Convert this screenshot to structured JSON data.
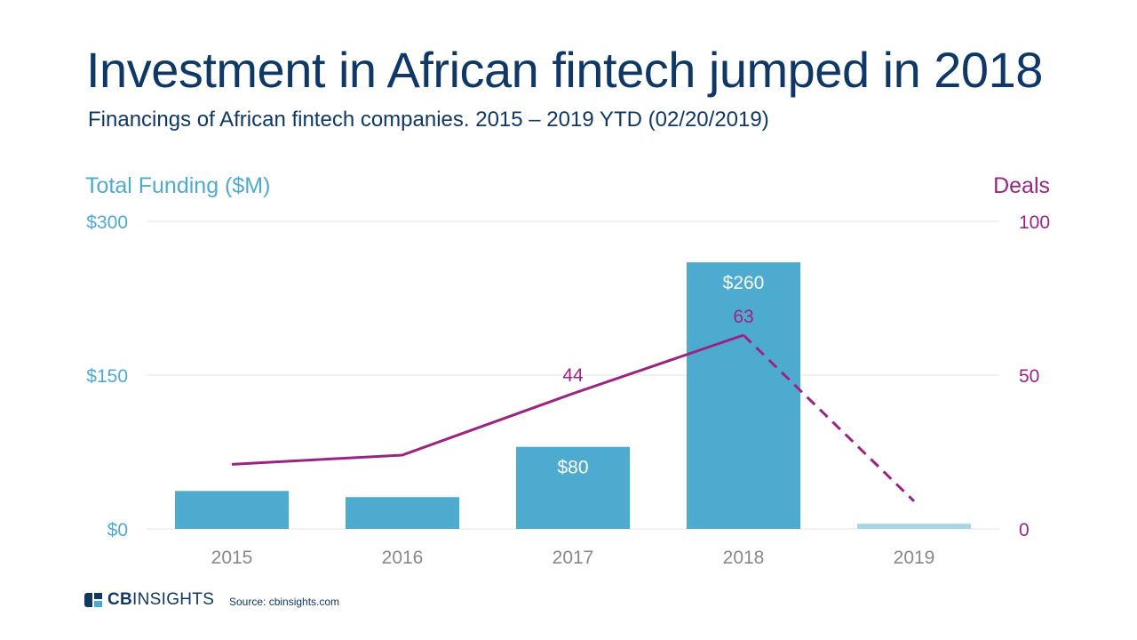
{
  "title": "Investment in African fintech jumped in 2018",
  "subtitle": "Financings of African fintech companies. 2015 – 2019 YTD (02/20/2019)",
  "colors": {
    "bar": "#4eabd0",
    "bar_partial": "#a8d5e6",
    "line": "#9b2482",
    "left_axis": "#4eabd0",
    "right_axis": "#9b2482",
    "title": "#0f3866",
    "tick": "#888888",
    "grid": "#e3e3e3"
  },
  "footer": {
    "logo_bold": "CB",
    "logo_rest": "INSIGHTS",
    "source": "Source: cbinsights.com"
  },
  "chart_data": {
    "type": "bar",
    "categories": [
      "2015",
      "2016",
      "2017",
      "2018",
      "2019"
    ],
    "series": [
      {
        "name": "Total Funding ($M)",
        "axis": "left",
        "type": "bar",
        "values": [
          37,
          31,
          80,
          260,
          5
        ],
        "labels": [
          "",
          "",
          "$80",
          "$260",
          ""
        ]
      },
      {
        "name": "Deals",
        "axis": "right",
        "type": "line",
        "values": [
          21,
          24,
          44,
          63,
          9
        ],
        "labels": [
          "",
          "",
          "44",
          "63",
          ""
        ],
        "dashed_from_index": 3
      }
    ],
    "ylabel": "Total Funding ($M)",
    "y2label": "Deals",
    "ylim": [
      0,
      300
    ],
    "y2lim": [
      0,
      100
    ],
    "yticks": [
      {
        "value": 0,
        "label": "$0"
      },
      {
        "value": 150,
        "label": "$150"
      },
      {
        "value": 300,
        "label": "$300"
      }
    ],
    "y2ticks": [
      {
        "value": 0,
        "label": "0"
      },
      {
        "value": 50,
        "label": "50"
      },
      {
        "value": 100,
        "label": "100"
      }
    ],
    "partial_last_category": true,
    "grid": true
  }
}
